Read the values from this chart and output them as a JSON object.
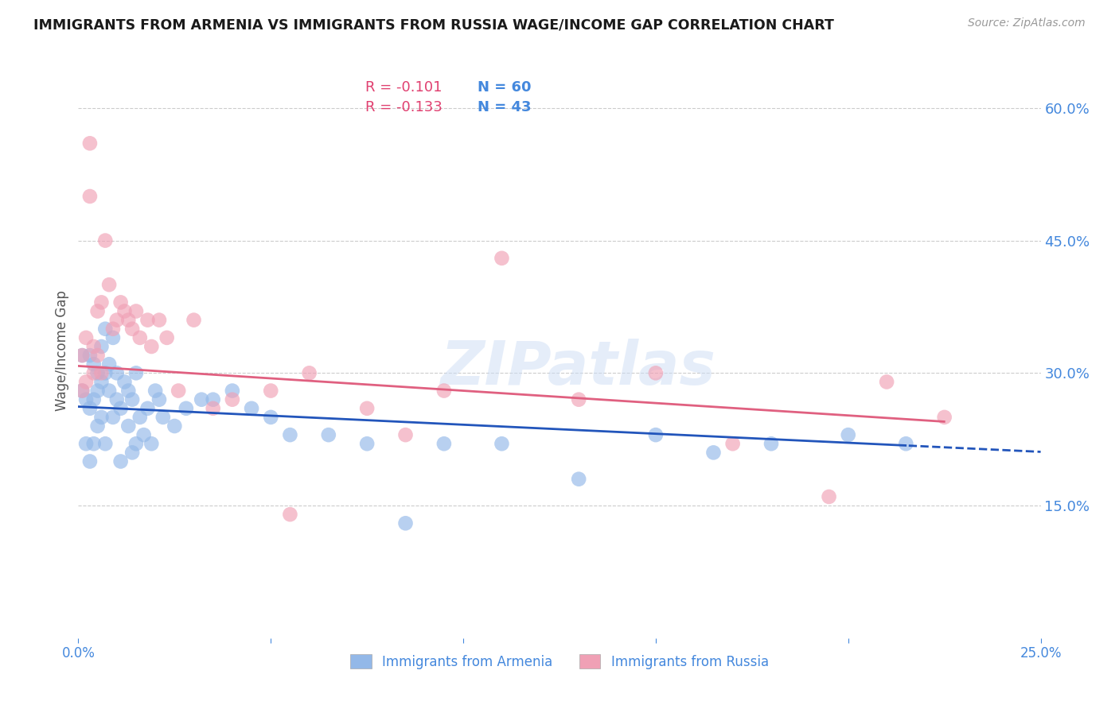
{
  "title": "IMMIGRANTS FROM ARMENIA VS IMMIGRANTS FROM RUSSIA WAGE/INCOME GAP CORRELATION CHART",
  "source": "Source: ZipAtlas.com",
  "ylabel": "Wage/Income Gap",
  "xlim": [
    0.0,
    0.25
  ],
  "ylim": [
    0.0,
    0.65
  ],
  "yticks": [
    0.15,
    0.3,
    0.45,
    0.6
  ],
  "ytick_labels": [
    "15.0%",
    "30.0%",
    "45.0%",
    "60.0%"
  ],
  "xticks": [
    0.0,
    0.05,
    0.1,
    0.15,
    0.2,
    0.25
  ],
  "xtick_labels": [
    "0.0%",
    "",
    "",
    "",
    "",
    "25.0%"
  ],
  "color_armenia": "#93b8e8",
  "color_russia": "#f0a0b5",
  "color_trendline_armenia": "#2255bb",
  "color_trendline_russia": "#e06080",
  "color_axis_labels": "#4488dd",
  "color_title": "#1a1a1a",
  "color_source": "#999999",
  "watermark": "ZIPatlas",
  "background_color": "#ffffff",
  "grid_color": "#cccccc",
  "figsize": [
    14.06,
    8.92
  ],
  "dpi": 100,
  "armenia_x": [
    0.001,
    0.001,
    0.002,
    0.002,
    0.003,
    0.003,
    0.003,
    0.004,
    0.004,
    0.004,
    0.005,
    0.005,
    0.005,
    0.006,
    0.006,
    0.006,
    0.007,
    0.007,
    0.007,
    0.008,
    0.008,
    0.009,
    0.009,
    0.01,
    0.01,
    0.011,
    0.011,
    0.012,
    0.013,
    0.013,
    0.014,
    0.014,
    0.015,
    0.015,
    0.016,
    0.017,
    0.018,
    0.019,
    0.02,
    0.021,
    0.022,
    0.025,
    0.028,
    0.032,
    0.035,
    0.04,
    0.045,
    0.05,
    0.055,
    0.065,
    0.075,
    0.085,
    0.095,
    0.11,
    0.13,
    0.15,
    0.165,
    0.18,
    0.2,
    0.215
  ],
  "armenia_y": [
    0.32,
    0.28,
    0.27,
    0.22,
    0.32,
    0.26,
    0.2,
    0.31,
    0.27,
    0.22,
    0.3,
    0.28,
    0.24,
    0.33,
    0.29,
    0.25,
    0.35,
    0.3,
    0.22,
    0.31,
    0.28,
    0.34,
    0.25,
    0.3,
    0.27,
    0.26,
    0.2,
    0.29,
    0.28,
    0.24,
    0.27,
    0.21,
    0.3,
    0.22,
    0.25,
    0.23,
    0.26,
    0.22,
    0.28,
    0.27,
    0.25,
    0.24,
    0.26,
    0.27,
    0.27,
    0.28,
    0.26,
    0.25,
    0.23,
    0.23,
    0.22,
    0.13,
    0.22,
    0.22,
    0.18,
    0.23,
    0.21,
    0.22,
    0.23,
    0.22
  ],
  "russia_x": [
    0.001,
    0.001,
    0.002,
    0.002,
    0.003,
    0.003,
    0.004,
    0.004,
    0.005,
    0.005,
    0.006,
    0.006,
    0.007,
    0.008,
    0.009,
    0.01,
    0.011,
    0.012,
    0.013,
    0.014,
    0.015,
    0.016,
    0.018,
    0.019,
    0.021,
    0.023,
    0.026,
    0.03,
    0.035,
    0.04,
    0.05,
    0.055,
    0.06,
    0.075,
    0.085,
    0.095,
    0.11,
    0.13,
    0.15,
    0.17,
    0.195,
    0.21,
    0.225
  ],
  "russia_y": [
    0.32,
    0.28,
    0.34,
    0.29,
    0.56,
    0.5,
    0.33,
    0.3,
    0.37,
    0.32,
    0.38,
    0.3,
    0.45,
    0.4,
    0.35,
    0.36,
    0.38,
    0.37,
    0.36,
    0.35,
    0.37,
    0.34,
    0.36,
    0.33,
    0.36,
    0.34,
    0.28,
    0.36,
    0.26,
    0.27,
    0.28,
    0.14,
    0.3,
    0.26,
    0.23,
    0.28,
    0.43,
    0.27,
    0.3,
    0.22,
    0.16,
    0.29,
    0.25
  ]
}
